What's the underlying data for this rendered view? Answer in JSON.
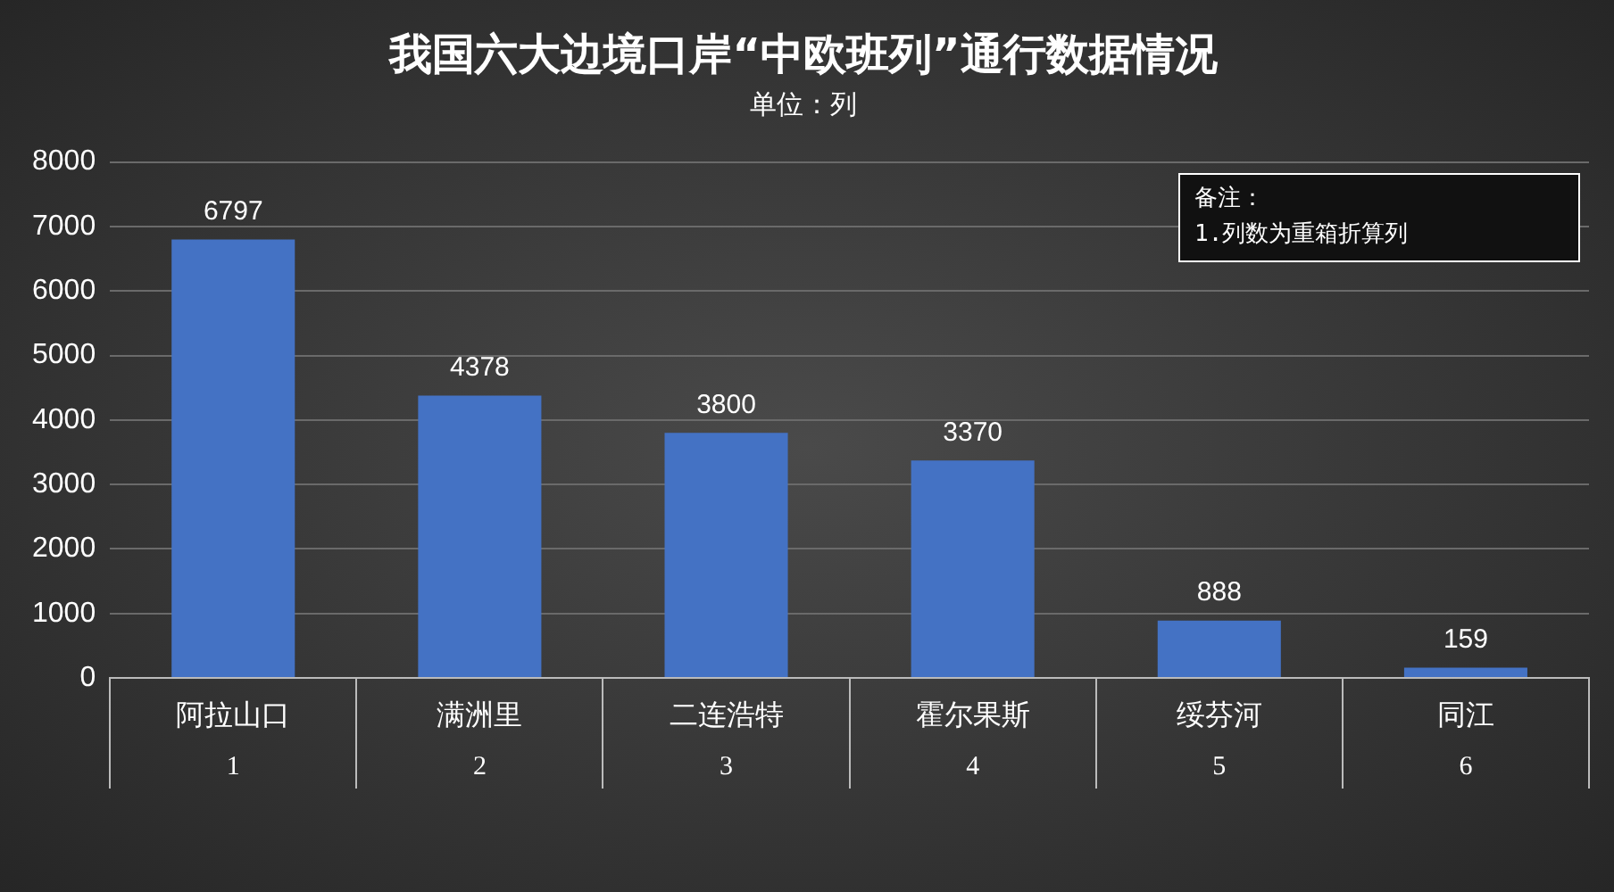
{
  "chart_data": {
    "type": "bar",
    "title": "我国六大边境口岸“中欧班列”通行数据情况",
    "subtitle": "单位：列",
    "categories": [
      "阿拉山口",
      "满洲里",
      "二连浩特",
      "霍尔果斯",
      "绥芬河",
      "同江"
    ],
    "values": [
      6797,
      4378,
      3800,
      3370,
      888,
      159
    ],
    "color": "#4472c4",
    "ylim": [
      0,
      8000
    ],
    "yticks": [
      0,
      1000,
      2000,
      3000,
      4000,
      5000,
      6000,
      7000,
      8000
    ],
    "grid": "y",
    "data_labels": true,
    "annotations": [
      "1",
      "2",
      "3",
      "4",
      "5",
      "6",
      "备注：\n1.列数为重箱折算列"
    ]
  }
}
